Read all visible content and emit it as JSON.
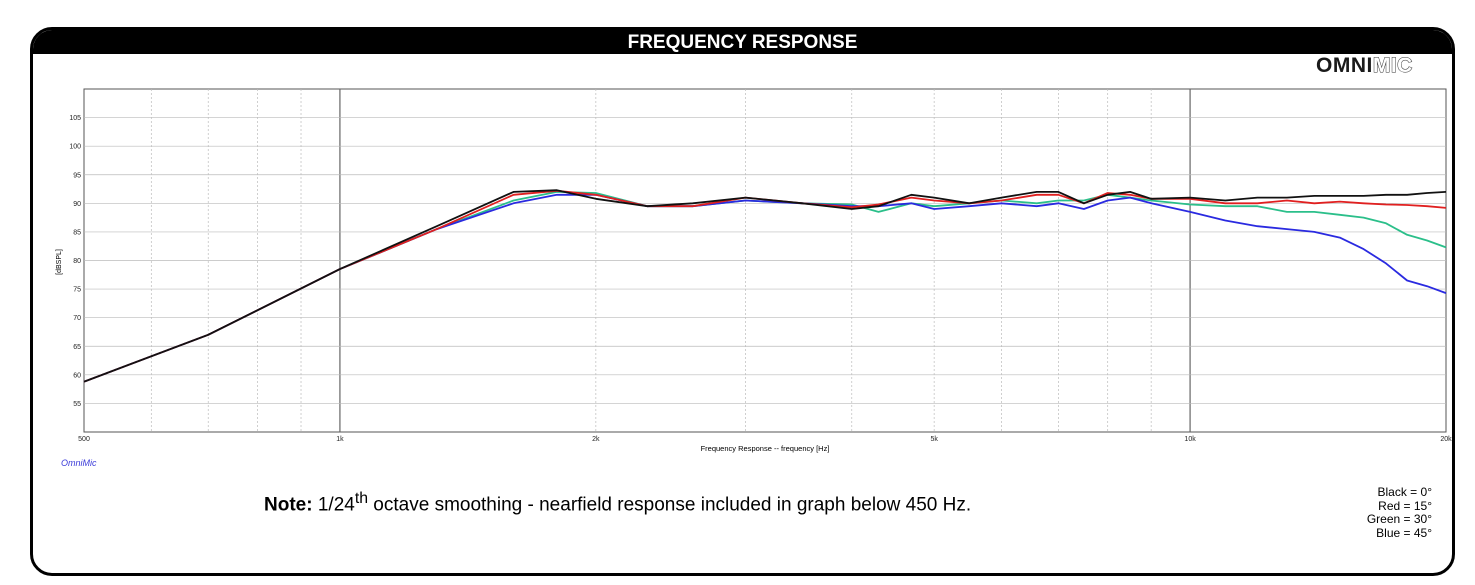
{
  "header": {
    "title": "FREQUENCY RESPONSE"
  },
  "brand": {
    "bold": "OMNI",
    "outline": "MIC"
  },
  "omnimic_tag": "OmniMic",
  "note": {
    "bold": "Note:",
    "pre": "1/24",
    "sup": "th",
    "post": " octave smoothing - nearfield response included in graph below 450 Hz."
  },
  "legend": [
    "Black = 0°",
    "Red = 15°",
    "Green = 30°",
    "Blue = 45°"
  ],
  "colors": {
    "black": "#111111",
    "red": "#e02020",
    "green": "#2bbf8a",
    "blue": "#2a2ae0"
  },
  "chart_data": {
    "type": "line",
    "xscale": "log",
    "xlim": [
      500,
      20000
    ],
    "ylim": [
      50,
      110
    ],
    "xlabel": "Frequency Response -- frequency [Hz]",
    "ylabel": "[dBSPL]",
    "yticks": [
      55,
      60,
      65,
      70,
      75,
      80,
      85,
      90,
      95,
      100,
      105
    ],
    "xticks": [
      500,
      1000,
      2000,
      5000,
      10000,
      20000
    ],
    "xtick_labels": [
      "500",
      "1k",
      "2k",
      "5k",
      "10k",
      "20k"
    ],
    "grid": true,
    "series": [
      {
        "color": "#2bbf8a",
        "x": [
          500,
          700,
          1000,
          1300,
          1600,
          1800,
          2000,
          2300,
          2600,
          3000,
          3500,
          4000,
          4300,
          4700,
          5000,
          5500,
          6000,
          6600,
          7000,
          7500,
          8000,
          8500,
          9000,
          10000,
          11000,
          12000,
          13000,
          14000,
          15000,
          16000,
          17000,
          18000,
          19000,
          20000
        ],
        "y": [
          58.8,
          67,
          78.5,
          85.5,
          90.5,
          92,
          91.8,
          89.5,
          89.5,
          90.5,
          90,
          89.8,
          88.5,
          90,
          89.5,
          90,
          90.5,
          90,
          90.5,
          90.5,
          91.5,
          91,
          90.5,
          89.8,
          89.5,
          89.5,
          88.5,
          88.5,
          88,
          87.5,
          86.5,
          84.5,
          83.5,
          82.3
        ]
      },
      {
        "color": "#2a2ae0",
        "x": [
          500,
          700,
          1000,
          1300,
          1600,
          1800,
          2000,
          2300,
          2600,
          3000,
          3500,
          4000,
          4300,
          4700,
          5000,
          5500,
          6000,
          6600,
          7000,
          7500,
          8000,
          8500,
          9000,
          10000,
          11000,
          12000,
          13000,
          14000,
          15000,
          16000,
          17000,
          18000,
          19000,
          20000
        ],
        "y": [
          58.8,
          67,
          78.5,
          85.5,
          90,
          91.5,
          91.5,
          89.5,
          89.5,
          90.5,
          90,
          89.5,
          89.5,
          90,
          89,
          89.5,
          90,
          89.5,
          90,
          89,
          90.5,
          91,
          90,
          88.5,
          87,
          86,
          85.5,
          85,
          84,
          82,
          79.5,
          76.5,
          75.5,
          74.3
        ]
      },
      {
        "color": "#e02020",
        "x": [
          500,
          700,
          1000,
          1300,
          1600,
          1800,
          2000,
          2300,
          2600,
          3000,
          3500,
          4000,
          4300,
          4700,
          5000,
          5500,
          6000,
          6600,
          7000,
          7500,
          8000,
          8500,
          9000,
          10000,
          11000,
          12000,
          13000,
          14000,
          15000,
          16000,
          17000,
          18000,
          19000,
          20000
        ],
        "y": [
          58.8,
          67,
          78.5,
          85.5,
          91.5,
          92.2,
          91.5,
          89.5,
          89.5,
          91,
          90,
          89.3,
          89.8,
          91,
          90.5,
          90,
          90.5,
          91.5,
          91.5,
          90,
          91.8,
          91.5,
          90.8,
          90.8,
          90,
          90,
          90.5,
          90,
          90.3,
          90,
          89.8,
          89.7,
          89.5,
          89.2
        ]
      },
      {
        "color": "#111111",
        "x": [
          500,
          700,
          1000,
          1300,
          1600,
          1800,
          2000,
          2300,
          2600,
          3000,
          3500,
          4000,
          4300,
          4700,
          5000,
          5500,
          6000,
          6600,
          7000,
          7500,
          8000,
          8500,
          9000,
          10000,
          11000,
          12000,
          13000,
          14000,
          15000,
          16000,
          17000,
          18000,
          19000,
          20000
        ],
        "y": [
          58.8,
          67,
          78.5,
          86,
          92,
          92.3,
          90.8,
          89.5,
          90,
          91,
          90,
          89,
          89.5,
          91.5,
          91,
          90,
          91,
          92,
          92,
          90,
          91.5,
          92,
          90.8,
          91,
          90.5,
          91,
          91,
          91.3,
          91.3,
          91.3,
          91.5,
          91.5,
          91.8,
          92
        ]
      }
    ]
  }
}
